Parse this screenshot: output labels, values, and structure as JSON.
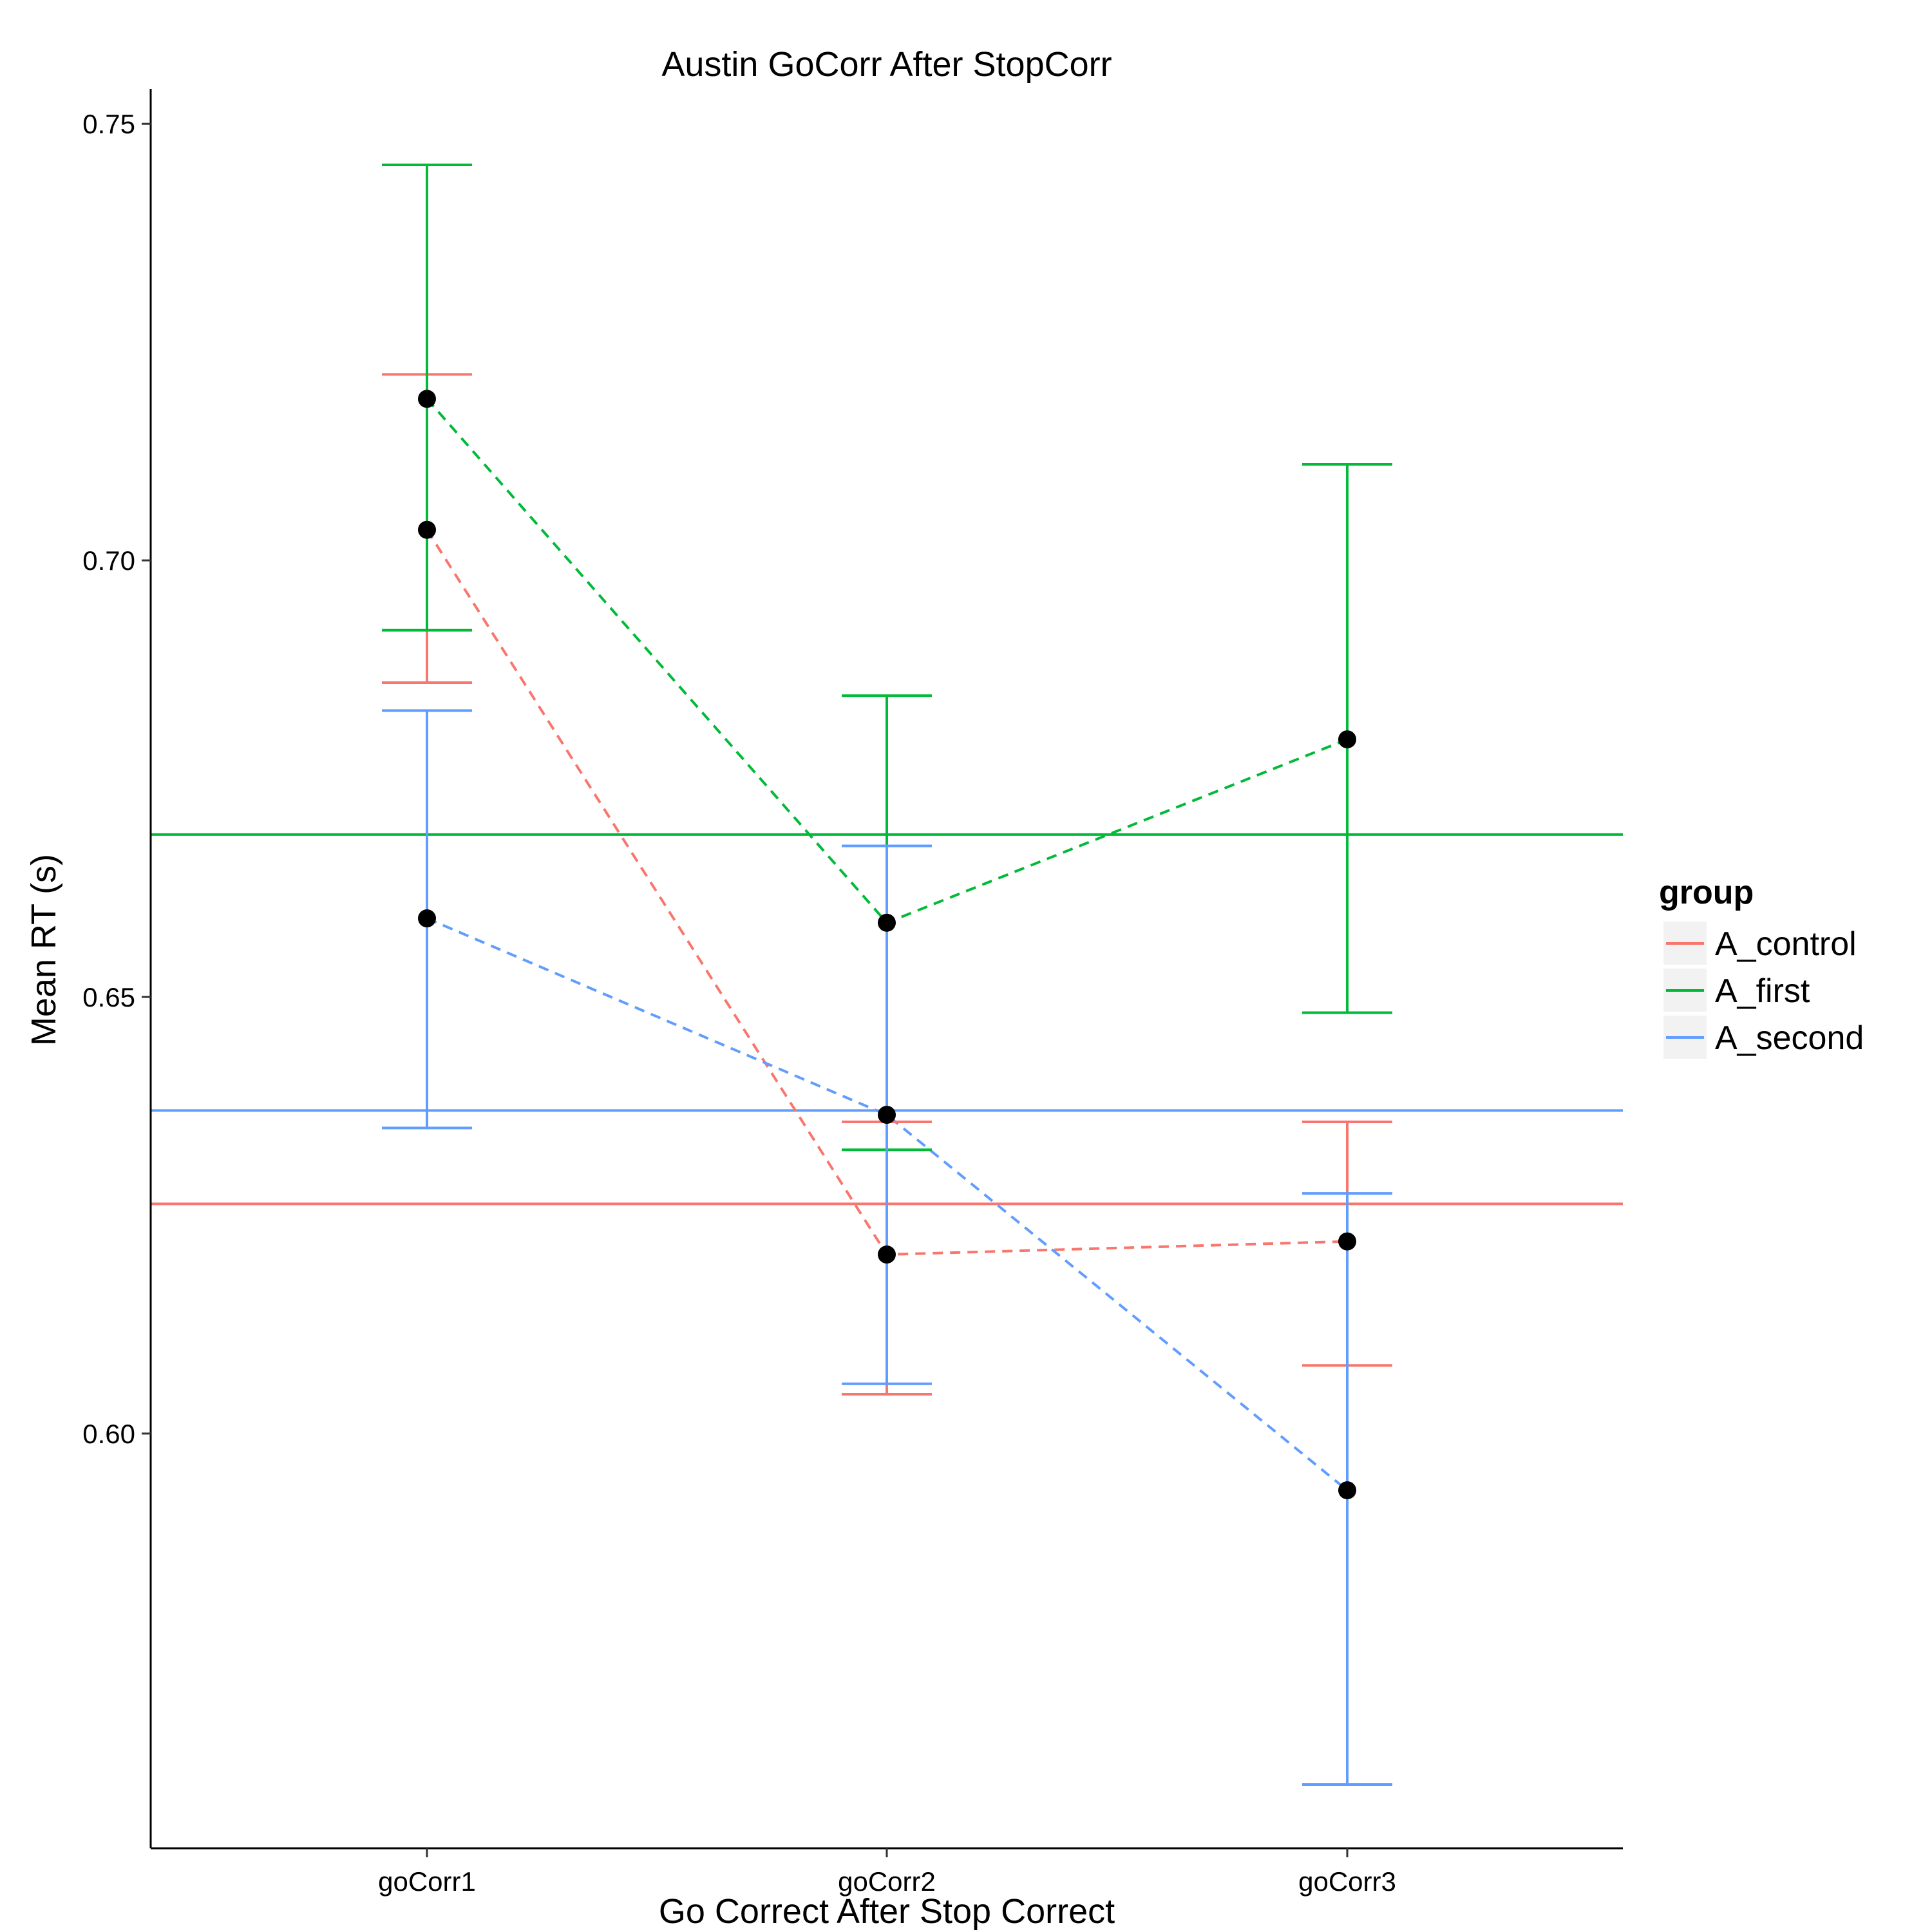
{
  "chart_data": {
    "type": "line",
    "title": "Austin GoCorr After StopCorr",
    "xlabel": "Go Correct After Stop Correct",
    "ylabel": "Mean RT (s)",
    "categories": [
      "goCorr1",
      "goCorr2",
      "goCorr3"
    ],
    "ylim": [
      0.5525,
      0.754
    ],
    "y_ticks": [
      {
        "value": 0.6,
        "label": "0.60"
      },
      {
        "value": 0.65,
        "label": "0.65"
      },
      {
        "value": 0.7,
        "label": "0.70"
      },
      {
        "value": 0.75,
        "label": "0.75"
      }
    ],
    "grid": false,
    "legend": {
      "title": "group",
      "position": "right"
    },
    "series": [
      {
        "name": "A_control",
        "color": "#F8766D",
        "values": [
          0.7035,
          0.6205,
          0.622
        ],
        "ci_low": [
          0.686,
          0.6045,
          0.6078
        ],
        "ci_high": [
          0.7213,
          0.6357,
          0.6357
        ],
        "mean_line": 0.6263
      },
      {
        "name": "A_first",
        "color": "#00BA38",
        "values": [
          0.7185,
          0.6585,
          0.6795
        ],
        "ci_low": [
          0.692,
          0.6325,
          0.6482
        ],
        "ci_high": [
          0.7453,
          0.6845,
          0.711
        ],
        "mean_line": 0.6686
      },
      {
        "name": "A_second",
        "color": "#619CFF",
        "values": [
          0.659,
          0.6365,
          0.5935
        ],
        "ci_low": [
          0.635,
          0.6057,
          0.5598
        ],
        "ci_high": [
          0.6828,
          0.6673,
          0.6275
        ],
        "mean_line": 0.637
      }
    ]
  }
}
